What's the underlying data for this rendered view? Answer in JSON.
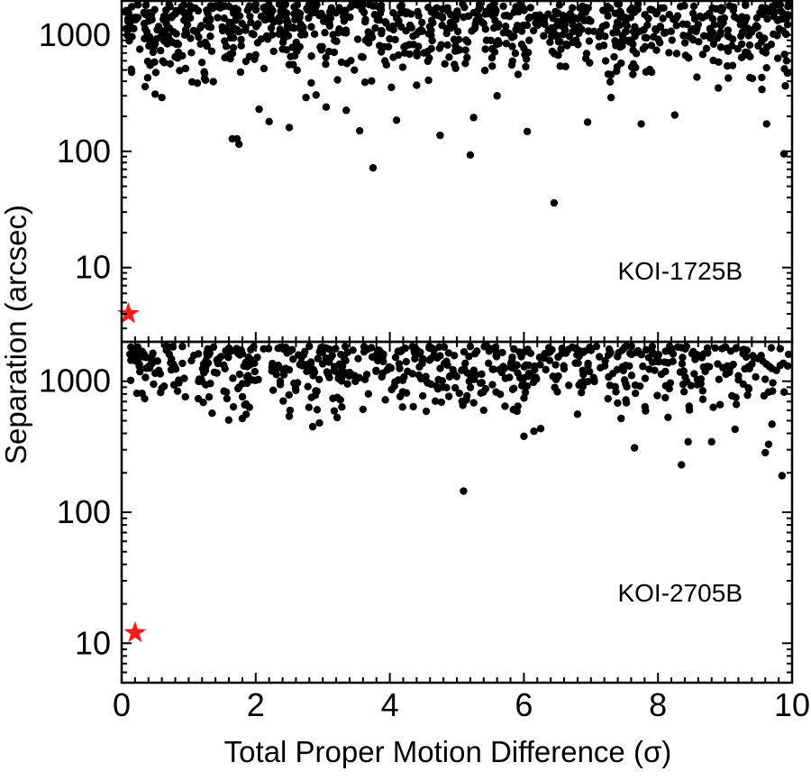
{
  "chart_data": {
    "type": "scatter",
    "xlabel": "Total Proper Motion Difference (σ)",
    "ylabel": "Separation (arcsec)",
    "xlim": [
      0,
      10
    ],
    "xticks": [
      0,
      2,
      4,
      6,
      8,
      10
    ],
    "x_tick_labels": [
      "0",
      "2",
      "4",
      "6",
      "8",
      "10"
    ],
    "x_minor_step": 0.2,
    "yscale": "log",
    "grid": false,
    "background_point_color": "#000000",
    "highlight_color": "#ff1a1a",
    "panels": [
      {
        "name": "KOI-1725B",
        "label": "KOI-1725B",
        "ylim": [
          2.3,
          2000
        ],
        "yticks": [
          10,
          100,
          1000
        ],
        "y_tick_labels": [
          "10",
          "100",
          "1000"
        ],
        "highlight": {
          "x": 0.1,
          "y": 4.0
        },
        "background_points": [
          [
            1.65,
            128
          ],
          [
            1.75,
            115
          ],
          [
            1.72,
            128
          ],
          [
            3.75,
            72
          ],
          [
            5.2,
            93
          ],
          [
            6.45,
            36
          ],
          [
            9.88,
            95
          ],
          [
            6.05,
            148
          ],
          [
            7.75,
            172
          ],
          [
            9.62,
            172
          ],
          [
            4.75,
            137
          ],
          [
            2.05,
            230
          ],
          [
            2.2,
            180
          ],
          [
            2.5,
            160
          ],
          [
            2.75,
            290
          ],
          [
            3.35,
            225
          ],
          [
            3.55,
            150
          ],
          [
            4.1,
            185
          ],
          [
            5.25,
            195
          ],
          [
            6.95,
            178
          ],
          [
            8.25,
            205
          ],
          [
            0.6,
            290
          ],
          [
            0.5,
            310
          ],
          [
            0.35,
            360
          ],
          [
            1.25,
            410
          ],
          [
            1.05,
            395
          ],
          [
            4.4,
            370
          ],
          [
            5.6,
            300
          ],
          [
            7.3,
            290
          ],
          [
            8.9,
            350
          ],
          [
            9.55,
            340
          ],
          [
            9.9,
            365
          ],
          [
            3.05,
            240
          ],
          [
            2.9,
            305
          ]
        ],
        "dense_band": {
          "x_range": [
            0.05,
            9.95
          ],
          "y_range": [
            350,
            1850
          ],
          "count": 900
        }
      },
      {
        "name": "KOI-2705B",
        "label": "KOI-2705B",
        "ylim": [
          5,
          2000
        ],
        "yticks": [
          10,
          100,
          1000
        ],
        "y_tick_labels": [
          "10",
          "100",
          "1000"
        ],
        "highlight": {
          "x": 0.2,
          "y": 12
        },
        "background_points": [
          [
            5.1,
            145
          ],
          [
            8.35,
            230
          ],
          [
            9.85,
            190
          ],
          [
            7.65,
            310
          ],
          [
            8.45,
            345
          ],
          [
            8.8,
            345
          ],
          [
            9.6,
            285
          ],
          [
            9.65,
            330
          ],
          [
            6.15,
            415
          ],
          [
            6.25,
            435
          ],
          [
            2.85,
            450
          ],
          [
            2.95,
            480
          ],
          [
            6.0,
            380
          ],
          [
            9.15,
            430
          ],
          [
            0.5,
            1150
          ],
          [
            0.95,
            760
          ],
          [
            1.35,
            570
          ],
          [
            1.8,
            520
          ],
          [
            2.5,
            540
          ],
          [
            3.6,
            610
          ],
          [
            4.35,
            640
          ],
          [
            5.4,
            600
          ],
          [
            6.8,
            560
          ],
          [
            7.45,
            520
          ],
          [
            8.15,
            530
          ],
          [
            9.7,
            470
          ]
        ],
        "dense_band": {
          "x_range": [
            0.1,
            9.95
          ],
          "y_range": [
            500,
            1850
          ],
          "count": 650
        }
      }
    ]
  }
}
